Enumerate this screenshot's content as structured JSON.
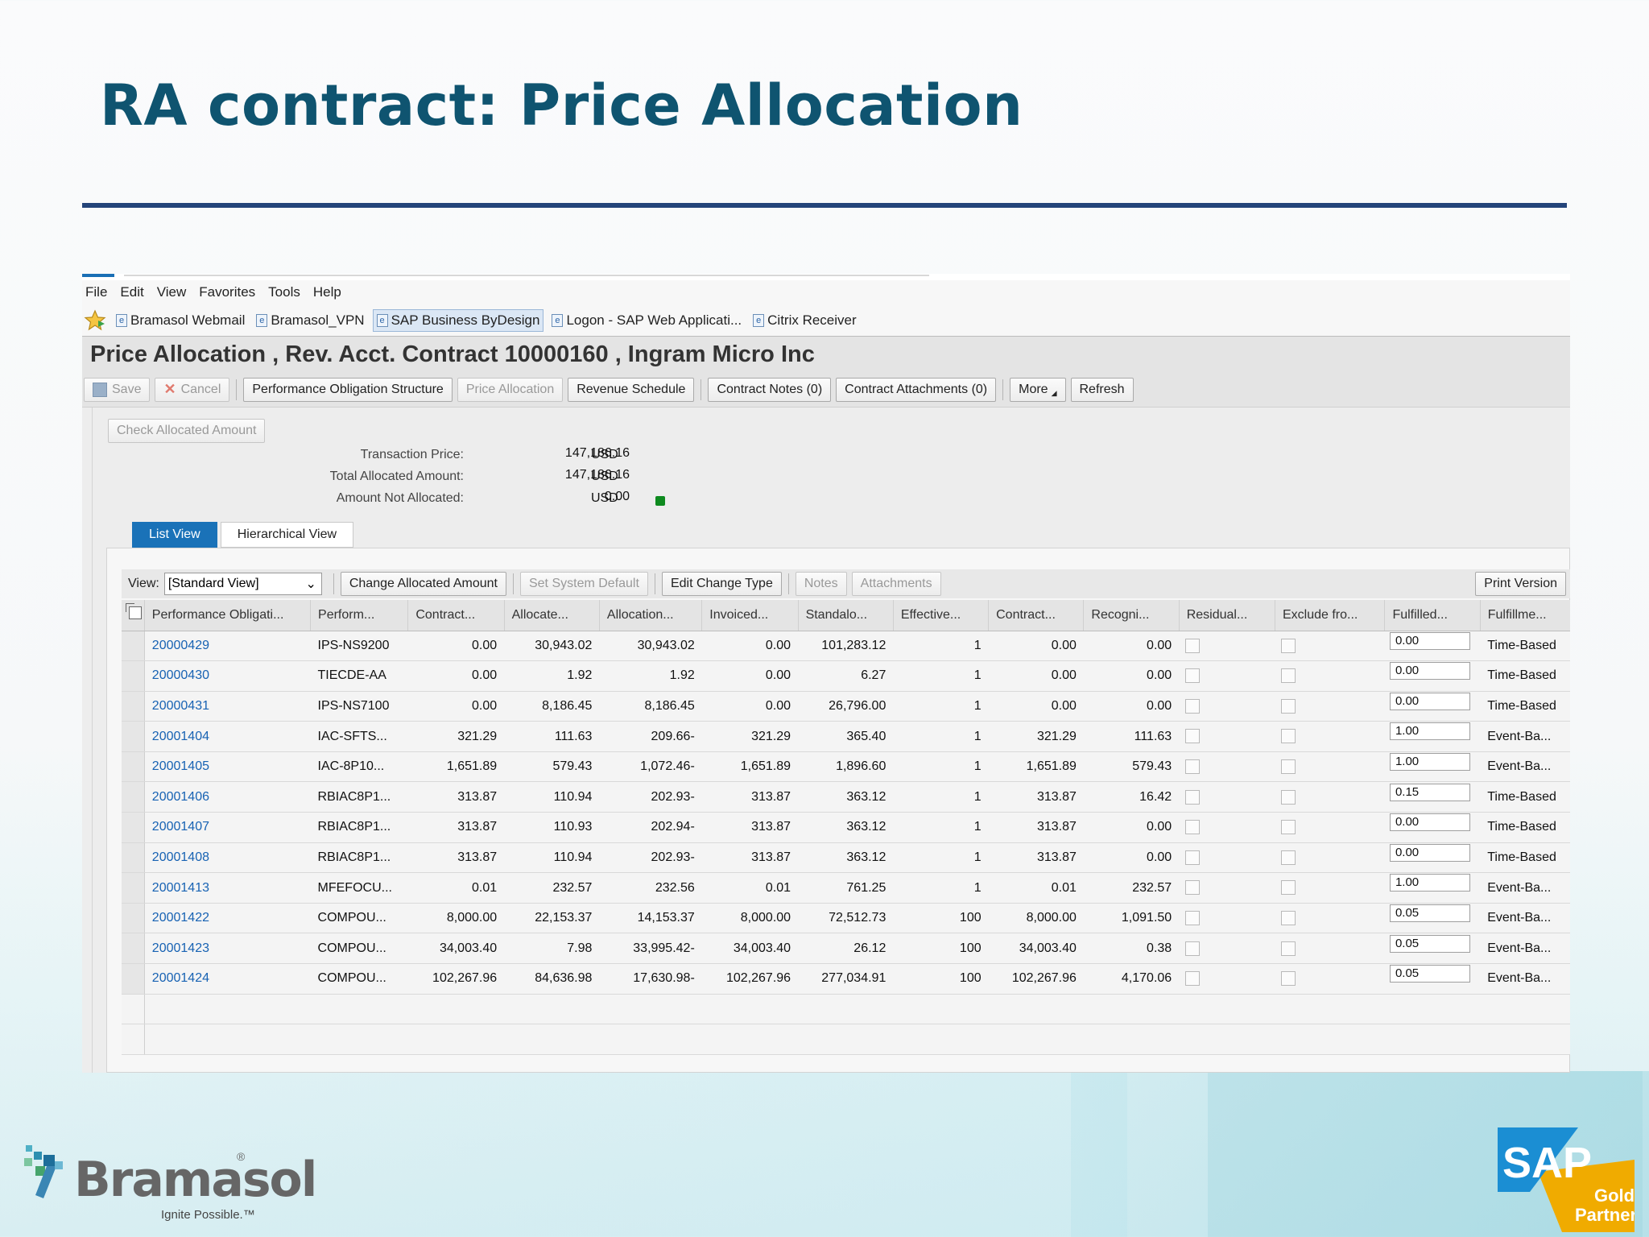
{
  "slide": {
    "title": "RA contract: Price Allocation"
  },
  "menu": [
    "File",
    "Edit",
    "View",
    "Favorites",
    "Tools",
    "Help"
  ],
  "favorites": [
    {
      "label": "Bramasol Webmail",
      "active": false
    },
    {
      "label": "Bramasol_VPN",
      "active": false
    },
    {
      "label": "SAP Business ByDesign",
      "active": true
    },
    {
      "label": "Logon - SAP Web Applicati...",
      "active": false
    },
    {
      "label": "Citrix Receiver",
      "active": false
    }
  ],
  "app": {
    "title": "Price Allocation , Rev. Acct. Contract 10000160 , Ingram Micro Inc"
  },
  "toolbar": {
    "save": "Save",
    "cancel": "Cancel",
    "po_structure": "Performance Obligation Structure",
    "price_allocation": "Price Allocation",
    "revenue_schedule": "Revenue Schedule",
    "contract_notes": "Contract Notes (0)",
    "contract_attachments": "Contract Attachments (0)",
    "more": "More",
    "refresh": "Refresh"
  },
  "check_allocated": "Check Allocated Amount",
  "summary": {
    "transaction_price_label": "Transaction Price:",
    "transaction_price": "147,186.16",
    "total_allocated_label": "Total Allocated Amount:",
    "total_allocated": "147,186.16",
    "not_allocated_label": "Amount Not Allocated:",
    "not_allocated": "0.00",
    "currency": "USD",
    "status_color": "#0e8a1f"
  },
  "tabs": {
    "list": "List View",
    "hierarchical": "Hierarchical View"
  },
  "grid_toolbar": {
    "view_label": "View:",
    "view_value": "[Standard View]",
    "change_allocated": "Change Allocated Amount",
    "set_default": "Set System Default",
    "edit_change_type": "Edit Change Type",
    "notes": "Notes",
    "attachments": "Attachments",
    "print_version": "Print Version"
  },
  "columns": [
    "Performance Obligati...",
    "Perform...",
    "Contract...",
    "Allocate...",
    "Allocation...",
    "Invoiced...",
    "Standalo...",
    "Effective...",
    "Contract...",
    "Recogni...",
    "Residual...",
    "Exclude fro...",
    "Fulfilled...",
    "Fulfillme..."
  ],
  "rows": [
    [
      "20000429",
      "IPS-NS9200",
      "0.00",
      "30,943.02",
      "30,943.02",
      "0.00",
      "101,283.12",
      "1",
      "0.00",
      "0.00",
      "0.00",
      "Time-Based"
    ],
    [
      "20000430",
      "TIECDE-AA",
      "0.00",
      "1.92",
      "1.92",
      "0.00",
      "6.27",
      "1",
      "0.00",
      "0.00",
      "0.00",
      "Time-Based"
    ],
    [
      "20000431",
      "IPS-NS7100",
      "0.00",
      "8,186.45",
      "8,186.45",
      "0.00",
      "26,796.00",
      "1",
      "0.00",
      "0.00",
      "0.00",
      "Time-Based"
    ],
    [
      "20001404",
      "IAC-SFTS...",
      "321.29",
      "111.63",
      "209.66-",
      "321.29",
      "365.40",
      "1",
      "321.29",
      "111.63",
      "1.00",
      "Event-Ba..."
    ],
    [
      "20001405",
      "IAC-8P10...",
      "1,651.89",
      "579.43",
      "1,072.46-",
      "1,651.89",
      "1,896.60",
      "1",
      "1,651.89",
      "579.43",
      "1.00",
      "Event-Ba..."
    ],
    [
      "20001406",
      "RBIAC8P1...",
      "313.87",
      "110.94",
      "202.93-",
      "313.87",
      "363.12",
      "1",
      "313.87",
      "16.42",
      "0.15",
      "Time-Based"
    ],
    [
      "20001407",
      "RBIAC8P1...",
      "313.87",
      "110.93",
      "202.94-",
      "313.87",
      "363.12",
      "1",
      "313.87",
      "0.00",
      "0.00",
      "Time-Based"
    ],
    [
      "20001408",
      "RBIAC8P1...",
      "313.87",
      "110.94",
      "202.93-",
      "313.87",
      "363.12",
      "1",
      "313.87",
      "0.00",
      "0.00",
      "Time-Based"
    ],
    [
      "20001413",
      "MFEFOCU...",
      "0.01",
      "232.57",
      "232.56",
      "0.01",
      "761.25",
      "1",
      "0.01",
      "232.57",
      "1.00",
      "Event-Ba..."
    ],
    [
      "20001422",
      "COMPOU...",
      "8,000.00",
      "22,153.37",
      "14,153.37",
      "8,000.00",
      "72,512.73",
      "100",
      "8,000.00",
      "1,091.50",
      "0.05",
      "Event-Ba..."
    ],
    [
      "20001423",
      "COMPOU...",
      "34,003.40",
      "7.98",
      "33,995.42-",
      "34,003.40",
      "26.12",
      "100",
      "34,003.40",
      "0.38",
      "0.05",
      "Event-Ba..."
    ],
    [
      "20001424",
      "COMPOU...",
      "102,267.96",
      "84,636.98",
      "17,630.98-",
      "102,267.96",
      "277,034.91",
      "100",
      "102,267.96",
      "4,170.06",
      "0.05",
      "Event-Ba..."
    ]
  ],
  "logos": {
    "bramasol": "Bramasol",
    "bramasol_tagline": "Ignite Possible.™",
    "sap": "SAP",
    "sap_gold": "Gold",
    "sap_partner": "Partner"
  }
}
